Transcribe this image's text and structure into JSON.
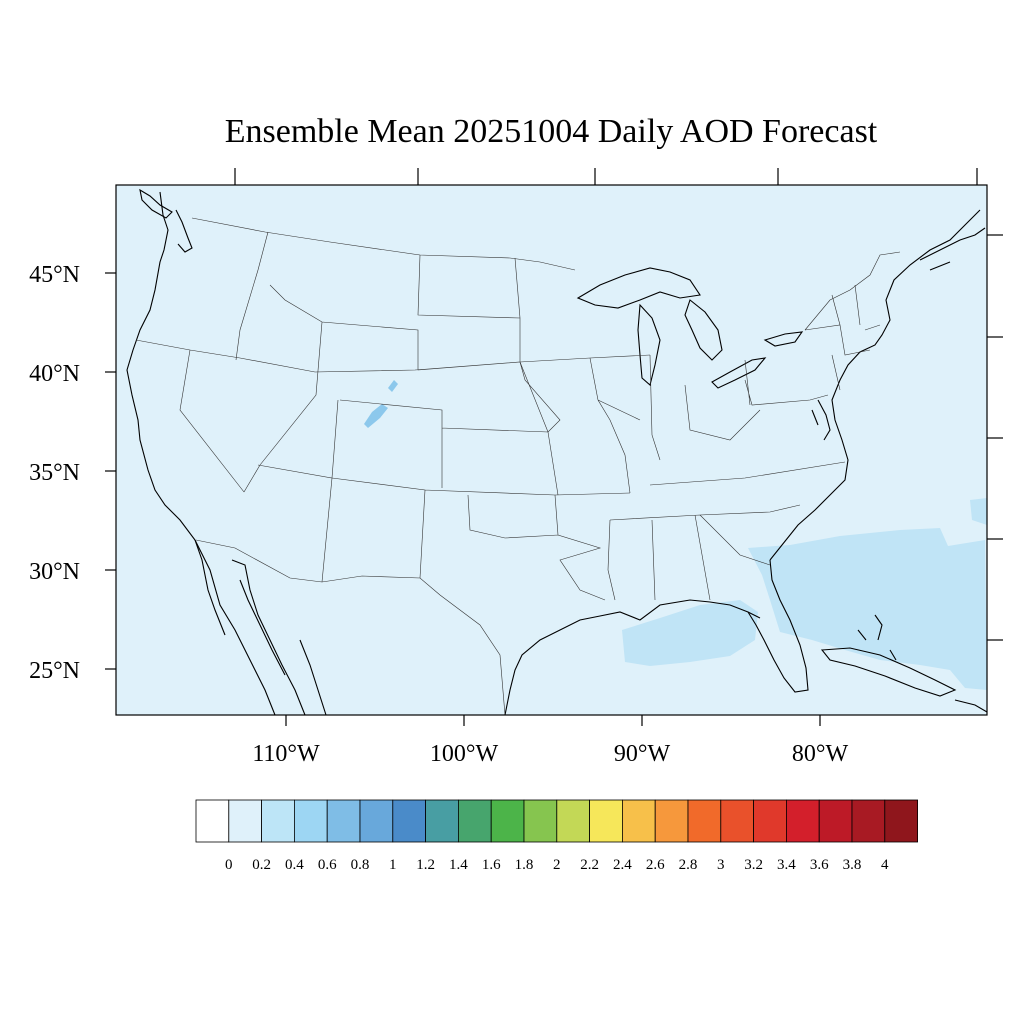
{
  "title": "Ensemble Mean 20251004 Daily AOD Forecast",
  "map": {
    "projection": "Lambert conformal (CONUS)",
    "background_color": "#dff1fa",
    "plume_color": "#c0e4f6",
    "hotspot_color": "#8cc8ec"
  },
  "latitude_labels": [
    "45°N",
    "40°N",
    "35°N",
    "30°N",
    "25°N"
  ],
  "longitude_labels": [
    "110°W",
    "100°W",
    "90°W",
    "80°W"
  ],
  "colorbar": {
    "labels": [
      "0",
      "0.2",
      "0.4",
      "0.6",
      "0.8",
      "1",
      "1.2",
      "1.4",
      "1.6",
      "1.8",
      "2",
      "2.2",
      "2.4",
      "2.6",
      "2.8",
      "3",
      "3.2",
      "3.4",
      "3.6",
      "3.8",
      "4"
    ],
    "colors": [
      "#ffffff",
      "#dff1fa",
      "#bde5f7",
      "#9dd6f3",
      "#7fbde6",
      "#68a8db",
      "#4a8bc9",
      "#489ea3",
      "#47a56d",
      "#4cb449",
      "#86c54f",
      "#c3d856",
      "#f6e75a",
      "#f7c04a",
      "#f6983c",
      "#f16a2a",
      "#e9512b",
      "#e0392b",
      "#d31f2b",
      "#bd1a27",
      "#a81a23",
      "#8f161c"
    ]
  }
}
